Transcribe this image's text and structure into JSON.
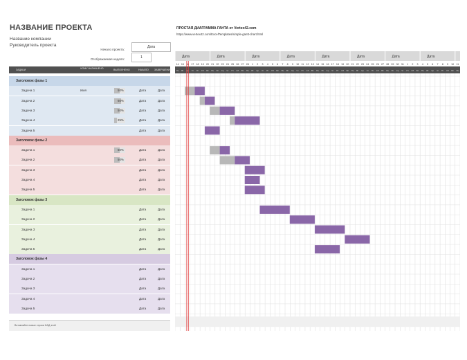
{
  "project": {
    "title": "НАЗВАНИЕ ПРОЕКТА",
    "company": "Название компании",
    "manager": "Руководитель проекта",
    "start_label": "Начало проекта:",
    "start_value": "Дата",
    "week_label": "Отображаемая неделя:",
    "week_value": "1"
  },
  "header_link": {
    "title": "ПРОСТАЯ ДИАГРАММА ГАНТА от Vertex42.com",
    "url": "https://www.vertex42.com/ExcelTemplates/simple-gantt-chart.html"
  },
  "columns": [
    "ЗАДАЧИ",
    "КОМУ НАЗНАЧЕНО",
    "ВЫПОЛНЕНО",
    "НАЧАЛО",
    "ЗАВЕРШЕНИЕ"
  ],
  "phases": [
    {
      "title": "Заголовок фазы 1",
      "color": "#c7d7e9",
      "row": "#dfe8f2",
      "tasks": [
        {
          "name": "Задача 1",
          "assigned": "Имя",
          "progress": 0.5,
          "pct": "50%",
          "start": "Дата",
          "end": "Дата"
        },
        {
          "name": "Задача 2",
          "assigned": "",
          "progress": 0.6,
          "pct": "60%",
          "start": "Дата",
          "end": "Дата"
        },
        {
          "name": "Задача 3",
          "assigned": "",
          "progress": 0.5,
          "pct": "50%",
          "start": "Дата",
          "end": "Дата"
        },
        {
          "name": "Задача 4",
          "assigned": "",
          "progress": 0.25,
          "pct": "25%",
          "start": "Дата",
          "end": "Дата"
        },
        {
          "name": "Задача 5",
          "assigned": "",
          "progress": null,
          "pct": "",
          "start": "Дата",
          "end": "Дата"
        }
      ]
    },
    {
      "title": "Заголовок фазы 2",
      "color": "#ebbcbc",
      "row": "#f4dede",
      "tasks": [
        {
          "name": "Задача 1",
          "assigned": "",
          "progress": 0.5,
          "pct": "50%",
          "start": "Дата",
          "end": "Дата"
        },
        {
          "name": "Задача 2",
          "assigned": "",
          "progress": 0.5,
          "pct": "50%",
          "start": "Дата",
          "end": "Дата"
        },
        {
          "name": "Задача 3",
          "assigned": "",
          "progress": null,
          "pct": "",
          "start": "Дата",
          "end": "Дата"
        },
        {
          "name": "Задача 4",
          "assigned": "",
          "progress": null,
          "pct": "",
          "start": "Дата",
          "end": "Дата"
        },
        {
          "name": "Задача 5",
          "assigned": "",
          "progress": null,
          "pct": "",
          "start": "Дата",
          "end": "Дата"
        }
      ]
    },
    {
      "title": "Заголовок фазы 3",
      "color": "#d8e6c4",
      "row": "#e9f1de",
      "tasks": [
        {
          "name": "Задача 1",
          "assigned": "",
          "progress": null,
          "pct": "",
          "start": "Дата",
          "end": "Дата"
        },
        {
          "name": "Задача 2",
          "assigned": "",
          "progress": null,
          "pct": "",
          "start": "Дата",
          "end": "Дата"
        },
        {
          "name": "Задача 3",
          "assigned": "",
          "progress": null,
          "pct": "",
          "start": "Дата",
          "end": "Дата"
        },
        {
          "name": "Задача 4",
          "assigned": "",
          "progress": null,
          "pct": "",
          "start": "Дата",
          "end": "Дата"
        },
        {
          "name": "Задача 5",
          "assigned": "",
          "progress": null,
          "pct": "",
          "start": "Дата",
          "end": "Дата"
        }
      ]
    },
    {
      "title": "Заголовок фазы 4",
      "color": "#d6cbe1",
      "row": "#e6dfee",
      "tasks": [
        {
          "name": "Задача 1",
          "assigned": "",
          "progress": null,
          "pct": "",
          "start": "Дата",
          "end": "Дата"
        },
        {
          "name": "Задача 2",
          "assigned": "",
          "progress": null,
          "pct": "",
          "start": "Дата",
          "end": "Дата"
        },
        {
          "name": "Задача 3",
          "assigned": "",
          "progress": null,
          "pct": "",
          "start": "Дата",
          "end": "Дата"
        },
        {
          "name": "Задача 4",
          "assigned": "",
          "progress": null,
          "pct": "",
          "start": "Дата",
          "end": "Дата"
        },
        {
          "name": "Задача 5",
          "assigned": "",
          "progress": null,
          "pct": "",
          "start": "Дата",
          "end": "Дата"
        }
      ]
    }
  ],
  "footer_note": "Вставляйте новые строки НАД этой",
  "timeline": {
    "week_label": "Дата",
    "days": [
      "14",
      "15",
      "16",
      "17",
      "18",
      "19",
      "20",
      "21",
      "22",
      "23",
      "24",
      "25",
      "26",
      "27",
      "28",
      "1",
      "2",
      "3",
      "4",
      "5",
      "6",
      "7",
      "8",
      "9",
      "10",
      "11",
      "12",
      "13",
      "14",
      "15",
      "16",
      "17",
      "18",
      "19",
      "20",
      "21",
      "22",
      "23",
      "24",
      "25",
      "26",
      "27",
      "28",
      "29",
      "30",
      "31",
      "1",
      "2",
      "3",
      "4",
      "5",
      "6",
      "7",
      "8",
      "9",
      "10",
      "11"
    ],
    "weekdays": [
      "Пн",
      "Вт",
      "Ср",
      "Чт",
      "Пт",
      "Сб",
      "Вс"
    ],
    "today_index": 2
  },
  "gantt_bars": [
    {
      "phase": 0,
      "task": 0,
      "start": 0,
      "done": 2,
      "todo": 2
    },
    {
      "phase": 0,
      "task": 1,
      "start": 3,
      "done": 1,
      "todo": 2
    },
    {
      "phase": 0,
      "task": 2,
      "start": 5,
      "done": 2,
      "todo": 3
    },
    {
      "phase": 0,
      "task": 3,
      "start": 9,
      "done": 1,
      "todo": 5
    },
    {
      "phase": 0,
      "task": 4,
      "start": 4,
      "done": 0,
      "todo": 3
    },
    {
      "phase": 1,
      "task": 0,
      "start": 5,
      "done": 2,
      "todo": 2
    },
    {
      "phase": 1,
      "task": 1,
      "start": 7,
      "done": 3,
      "todo": 3
    },
    {
      "phase": 1,
      "task": 2,
      "start": 12,
      "done": 0,
      "todo": 4
    },
    {
      "phase": 1,
      "task": 3,
      "start": 12,
      "done": 0,
      "todo": 3
    },
    {
      "phase": 1,
      "task": 4,
      "start": 12,
      "done": 0,
      "todo": 4
    },
    {
      "phase": 2,
      "task": 0,
      "start": 15,
      "done": 0,
      "todo": 6
    },
    {
      "phase": 2,
      "task": 1,
      "start": 21,
      "done": 0,
      "todo": 5
    },
    {
      "phase": 2,
      "task": 2,
      "start": 26,
      "done": 0,
      "todo": 6
    },
    {
      "phase": 2,
      "task": 3,
      "start": 32,
      "done": 0,
      "todo": 5
    },
    {
      "phase": 2,
      "task": 4,
      "start": 26,
      "done": 0,
      "todo": 5
    }
  ],
  "colors": {
    "done": "#b8b8b8",
    "todo": "#8a67a8",
    "today": "#e03a3a",
    "header": "#505050"
  }
}
